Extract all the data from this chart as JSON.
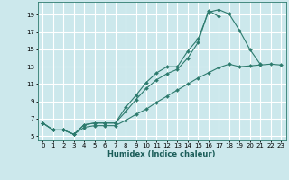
{
  "xlabel": "Humidex (Indice chaleur)",
  "bg_color": "#cce8ec",
  "grid_color": "#ffffff",
  "line_color": "#2d7b6e",
  "x_values": [
    0,
    1,
    2,
    3,
    4,
    5,
    6,
    7,
    8,
    9,
    10,
    11,
    12,
    13,
    14,
    15,
    16,
    17,
    18,
    19,
    20,
    21,
    22,
    23
  ],
  "line1_y": [
    6.5,
    5.7,
    5.7,
    5.2,
    6.3,
    6.5,
    6.5,
    6.5,
    8.3,
    9.7,
    11.2,
    12.3,
    13.0,
    13.0,
    14.8,
    16.2,
    19.3,
    19.6,
    19.1,
    17.2,
    15.0,
    13.3,
    null,
    null
  ],
  "line2_y": [
    6.5,
    5.7,
    5.7,
    5.2,
    6.3,
    6.5,
    6.5,
    6.5,
    7.8,
    9.2,
    10.5,
    11.5,
    12.2,
    12.7,
    14.0,
    15.8,
    19.5,
    18.8,
    null,
    null,
    null,
    null,
    null,
    null
  ],
  "line3_y": [
    6.5,
    5.7,
    5.7,
    5.2,
    6.0,
    6.2,
    6.2,
    6.2,
    6.8,
    7.5,
    8.1,
    8.9,
    9.6,
    10.3,
    11.0,
    11.7,
    12.3,
    12.9,
    13.3,
    13.0,
    13.1,
    13.2,
    13.3,
    13.2
  ],
  "ylim": [
    4.5,
    20.5
  ],
  "yticks": [
    5,
    7,
    9,
    11,
    13,
    15,
    17,
    19
  ],
  "xlim": [
    -0.5,
    23.5
  ],
  "xticks": [
    0,
    1,
    2,
    3,
    4,
    5,
    6,
    7,
    8,
    9,
    10,
    11,
    12,
    13,
    14,
    15,
    16,
    17,
    18,
    19,
    20,
    21,
    22,
    23
  ],
  "xlabel_fontsize": 6.0,
  "tick_fontsize": 5.0
}
